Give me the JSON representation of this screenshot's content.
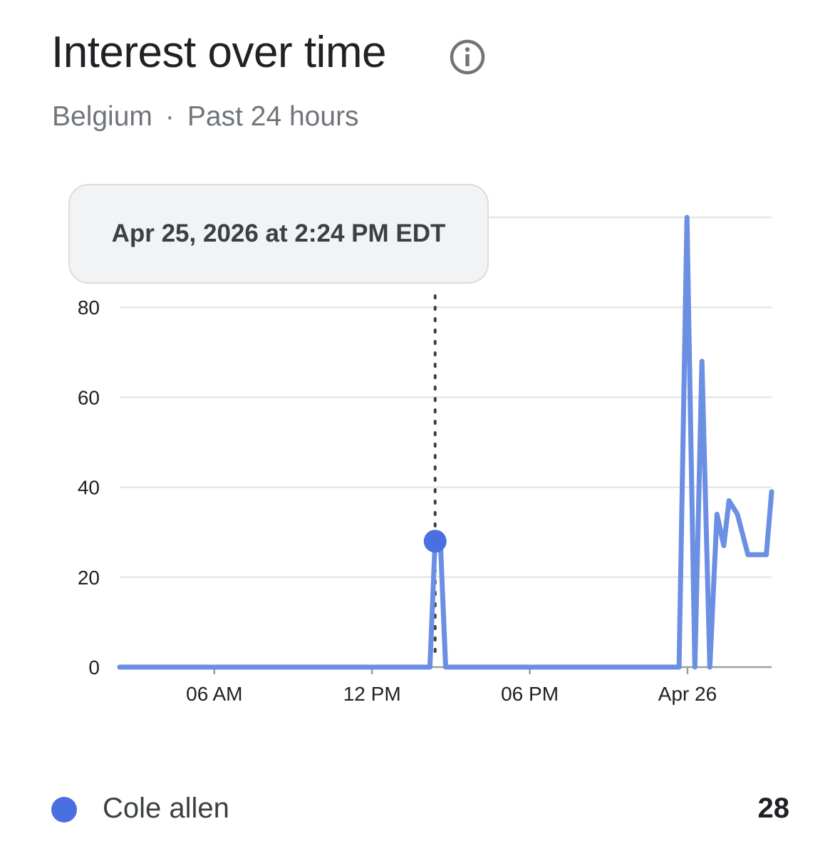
{
  "header": {
    "title": "Interest over time",
    "info_icon": "info-icon",
    "region": "Belgium",
    "separator": "·",
    "period": "Past 24 hours"
  },
  "tooltip": {
    "text": "Apr 25, 2026 at 2:24 PM EDT"
  },
  "colors": {
    "series": "#6b8fe3",
    "marker": "#4a6fe0",
    "grid": "#e6e6e6",
    "axis": "#9e9e9e",
    "text": "#202124"
  },
  "chart_data": {
    "type": "line",
    "title": "",
    "xlabel": "",
    "ylabel": "",
    "ylim": [
      0,
      100
    ],
    "yticks": [
      0,
      20,
      40,
      60,
      80
    ],
    "xtick_hours": [
      6,
      12,
      18,
      24
    ],
    "xtick_labels": [
      "06 AM",
      "12 PM",
      "06 PM",
      "Apr 26"
    ],
    "xlim_hours": [
      2.4,
      27.2
    ],
    "grid": true,
    "legend": "bottom",
    "series": [
      {
        "name": "Cole allen",
        "x": [
          2.4,
          14.0,
          14.2,
          14.4,
          14.6,
          14.8,
          23.5,
          23.68,
          23.98,
          24.28,
          24.55,
          24.85,
          25.12,
          25.38,
          25.58,
          25.9,
          26.3,
          26.7,
          27.0,
          27.2
        ],
        "y": [
          0,
          0,
          0,
          28,
          28,
          0,
          0,
          0,
          100,
          0,
          68,
          0,
          34,
          27,
          37,
          34,
          25,
          25,
          25,
          39
        ]
      }
    ],
    "highlight": {
      "x": 14.4,
      "y": 28
    },
    "legend_value": "28"
  }
}
